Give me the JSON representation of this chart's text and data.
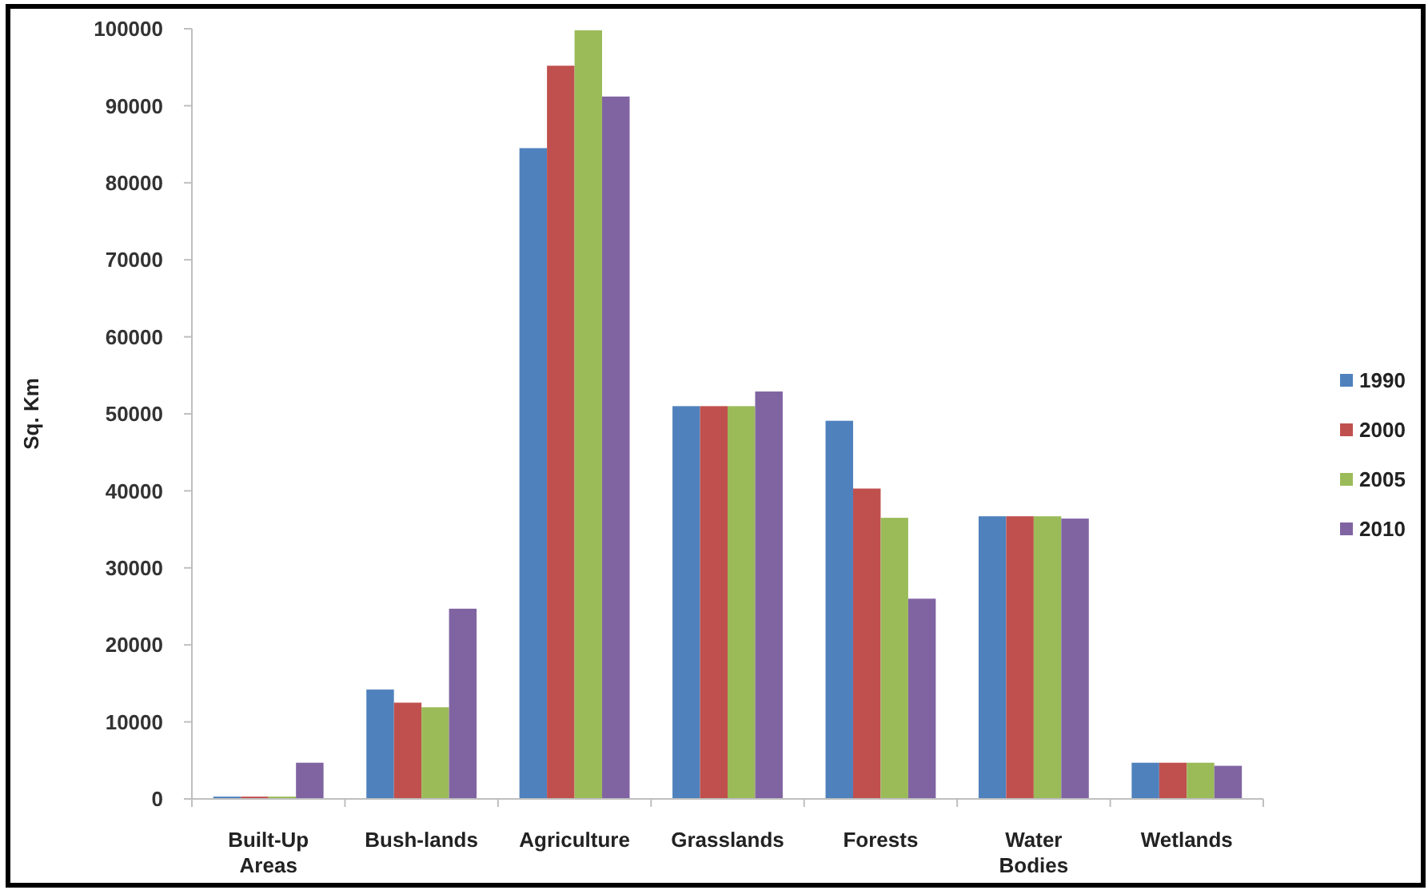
{
  "chart_data": {
    "type": "bar",
    "ylabel": "Sq. Km",
    "categories": [
      "Built-Up Areas",
      "Bush-lands",
      "Agriculture",
      "Grasslands",
      "Forests",
      "Water Bodies",
      "Wetlands"
    ],
    "series": [
      {
        "name": "1990",
        "color": "#4f81bd",
        "values": [
          300,
          14200,
          84500,
          51000,
          49100,
          36700,
          4700
        ]
      },
      {
        "name": "2000",
        "color": "#c0504d",
        "values": [
          300,
          12500,
          95200,
          51000,
          40300,
          36700,
          4700
        ]
      },
      {
        "name": "2005",
        "color": "#9bbb59",
        "values": [
          300,
          11900,
          99800,
          51000,
          36500,
          36700,
          4700
        ]
      },
      {
        "name": "2010",
        "color": "#8064a2",
        "values": [
          4700,
          24700,
          91200,
          52900,
          26000,
          36400,
          4300
        ]
      }
    ],
    "ylim": [
      0,
      100000
    ],
    "yticks": [
      0,
      10000,
      20000,
      30000,
      40000,
      50000,
      60000,
      70000,
      80000,
      90000,
      100000
    ],
    "grid": false,
    "legend": "right"
  }
}
